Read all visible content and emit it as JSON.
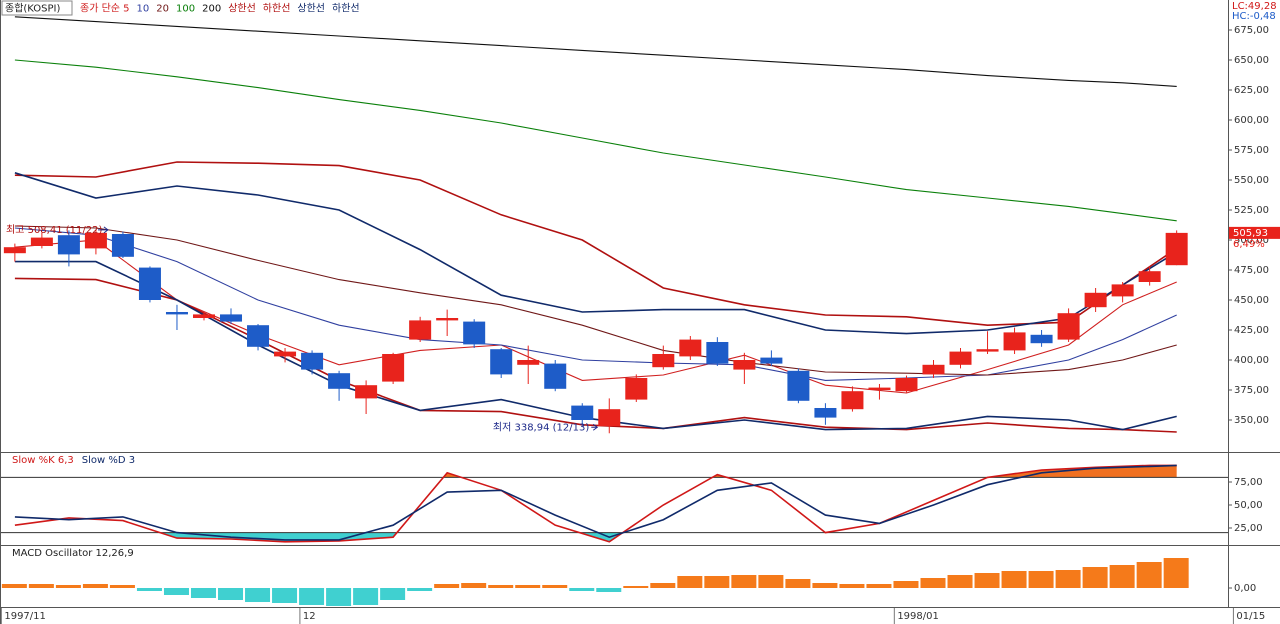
{
  "chart_data": [
    {
      "type": "candlestick",
      "title": "종합(KOSPI)",
      "categories": [
        null,
        null,
        null,
        null,
        null,
        null,
        null,
        null,
        null,
        null,
        null,
        null,
        null,
        null,
        null,
        null,
        null,
        null,
        null,
        null,
        null,
        null,
        null,
        null,
        null,
        null,
        null,
        null,
        null,
        null,
        null,
        null,
        null,
        null,
        null,
        null,
        null,
        null,
        null,
        null,
        null,
        null,
        null,
        null
      ],
      "open": [
        489,
        495,
        504,
        493,
        505,
        477,
        440,
        435,
        438,
        429,
        403,
        406,
        389,
        368,
        382,
        417,
        433,
        432,
        409,
        396,
        397,
        362,
        345,
        367,
        394,
        403,
        415,
        392,
        402,
        391,
        360,
        359,
        375,
        374,
        388,
        396,
        407,
        408,
        421,
        417,
        444,
        453,
        465,
        479
      ],
      "high": [
        497,
        506,
        508,
        508.41,
        507,
        478,
        446,
        440,
        443,
        430,
        410,
        408,
        391,
        383,
        406,
        436,
        442,
        434,
        410,
        412,
        400,
        364,
        368,
        388,
        412,
        420,
        419,
        406,
        408,
        393,
        364,
        378,
        380,
        387,
        400,
        410,
        424,
        427,
        425,
        443,
        460,
        465,
        478,
        508
      ],
      "low": [
        482,
        493,
        478,
        488,
        485,
        448,
        425,
        433,
        430,
        408,
        398,
        388,
        366,
        355,
        380,
        415,
        420,
        410,
        385,
        380,
        374,
        345,
        338.94,
        365,
        392,
        400,
        395,
        380,
        395,
        364,
        346,
        357,
        367,
        373,
        385,
        393,
        405,
        405,
        411,
        415,
        440,
        448,
        462,
        479
      ],
      "close": [
        494,
        502,
        488,
        506,
        486,
        450,
        438,
        438,
        432,
        411,
        407,
        392,
        376,
        379,
        405,
        433,
        435,
        413,
        388,
        400,
        376,
        350,
        359,
        385,
        405,
        417,
        397,
        400,
        397,
        366,
        352,
        374,
        377,
        385,
        396,
        407,
        409,
        423,
        414,
        439,
        456,
        463,
        474,
        505.93
      ],
      "up_color": "#e8231c",
      "down_color": "#1e5cc8",
      "ylim": [
        323.33,
        700
      ],
      "yticks": [
        {
          "value": 350,
          "label": "350,00"
        },
        {
          "value": 375,
          "label": "375,00"
        },
        {
          "value": 400,
          "label": "400,00"
        },
        {
          "value": 425,
          "label": "425,00"
        },
        {
          "value": 450,
          "label": "450,00"
        },
        {
          "value": 475,
          "label": "475,00"
        },
        {
          "value": 500,
          "label": "500,00"
        },
        {
          "value": 525,
          "label": "525,00"
        },
        {
          "value": 550,
          "label": "550,00"
        },
        {
          "value": 575,
          "label": "575,00"
        },
        {
          "value": 600,
          "label": "600,00"
        },
        {
          "value": 625,
          "label": "625,00"
        },
        {
          "value": 650,
          "label": "650,00"
        },
        {
          "value": 675,
          "label": "675,00"
        }
      ],
      "xlim": [
        -0.55,
        44.9
      ],
      "xticks": [
        {
          "value": -0.5,
          "label": "1997/11"
        },
        {
          "value": 10.55,
          "label": "12"
        },
        {
          "value": 32.55,
          "label": "1998/01"
        },
        {
          "value": 45.1,
          "label": "01/15"
        }
      ],
      "lines_x": [
        0,
        3,
        6,
        9,
        12,
        15,
        18,
        21,
        24,
        27,
        30,
        33,
        36,
        39,
        41,
        43
      ],
      "lines": [
        {
          "name": "종가 단순 5",
          "color": "#d02020",
          "values": [
            494,
            500,
            450,
            421,
            396,
            408,
            412.5,
            383,
            387.5,
            404,
            379,
            372.5,
            392,
            412.5,
            446,
            465
          ]
        },
        {
          "name": "10",
          "color": "#3040a0",
          "values": [
            510,
            504,
            482,
            450,
            429,
            417,
            412.5,
            400,
            397.5,
            396,
            383,
            385,
            387.5,
            400,
            417,
            437.5
          ]
        },
        {
          "name": "20",
          "color": "#701818",
          "values": [
            511.7,
            510,
            500,
            483,
            467,
            456,
            446,
            429,
            408,
            398,
            390,
            389,
            387.5,
            392,
            400,
            412.5
          ]
        },
        {
          "name": "100",
          "color": "#0a800a",
          "values": [
            650,
            644,
            636,
            627,
            617,
            608,
            597.5,
            585,
            572.5,
            562.5,
            552.5,
            542,
            535,
            528,
            522,
            516
          ]
        },
        {
          "name": "200",
          "color": "#101010",
          "values": [
            686,
            682,
            678,
            674,
            670,
            666,
            662,
            658,
            654,
            650,
            646,
            642,
            637,
            633,
            631,
            628
          ]
        },
        {
          "name": "상한선",
          "color": "#b01010",
          "values": [
            554,
            552.5,
            565,
            564,
            562,
            550,
            521,
            500,
            460,
            446,
            437.5,
            436,
            429,
            431.5,
            462.5,
            493
          ]
        },
        {
          "name": "하한선",
          "color": "#b01010",
          "values": [
            468,
            467,
            450,
            417,
            383,
            358,
            357,
            346,
            343,
            352,
            344,
            342,
            347.5,
            343,
            342,
            340
          ]
        },
        {
          "name": "상한선",
          "color": "#102a6a",
          "values": [
            556,
            535,
            545,
            537.5,
            525,
            492,
            454,
            440,
            442,
            442,
            425,
            422,
            425,
            435,
            462.5,
            490
          ]
        },
        {
          "name": "하한선",
          "color": "#102a6a",
          "values": [
            482,
            482,
            450,
            412.5,
            379,
            358,
            367,
            352,
            343,
            350,
            342,
            343,
            353,
            350,
            342,
            353
          ]
        }
      ],
      "high_label": {
        "text": "최고 508,41 (11/22)",
        "index": 3
      },
      "low_label": {
        "text": "최저 338,94 (12/13)",
        "index": 22
      },
      "close_label": "505,93",
      "change_label": "6,49%",
      "lc_label": "LC:49,28",
      "hc_label": "HC:-0,48"
    },
    {
      "type": "line",
      "x": [
        0,
        2,
        4,
        6,
        8,
        10,
        12,
        14,
        16,
        18,
        20,
        22,
        24,
        26,
        28,
        30,
        32,
        34,
        36,
        38,
        40,
        42,
        43
      ],
      "series": [
        {
          "name": "Slow %K 6,3",
          "color": "#d01818",
          "values": [
            28,
            36,
            33,
            14,
            13,
            10,
            11,
            15,
            85,
            66,
            28,
            10,
            50,
            83,
            66,
            20,
            30,
            55,
            80,
            88,
            91,
            93,
            93
          ]
        },
        {
          "name": "Slow %D 3",
          "color": "#102a6a",
          "values": [
            37,
            34,
            37,
            20,
            15,
            12,
            12,
            28,
            64,
            66,
            39,
            15,
            34,
            66,
            74,
            39,
            30,
            50,
            72,
            85,
            90,
            92,
            93
          ]
        }
      ],
      "reference_lines": [
        20,
        80
      ],
      "over_color": "#f07020",
      "under_color": "#40d0d0",
      "ylim": [
        6.5,
        107.6
      ],
      "yticks": [
        {
          "value": 25,
          "label": "25,00"
        },
        {
          "value": 50,
          "label": "50,00"
        },
        {
          "value": 75,
          "label": "75,00"
        }
      ]
    },
    {
      "type": "bar",
      "title": "MACD Oscillator 12,26,9",
      "values": [
        4,
        4,
        3,
        4,
        3,
        -3,
        -7,
        -10,
        -12,
        -14,
        -15,
        -17,
        -18,
        -17,
        -12,
        -3,
        4,
        5,
        3,
        3,
        3,
        -3,
        -4,
        2,
        5,
        12,
        12,
        13,
        13,
        9,
        5,
        4,
        4,
        7,
        10,
        13,
        15,
        17,
        17,
        18,
        21,
        23,
        26,
        30
      ],
      "pos_color": "#f57a1a",
      "neg_color": "#40d0d0",
      "ylim": [
        -19,
        43
      ],
      "yticks": [
        {
          "value": 0,
          "label": "0,00"
        }
      ]
    }
  ]
}
